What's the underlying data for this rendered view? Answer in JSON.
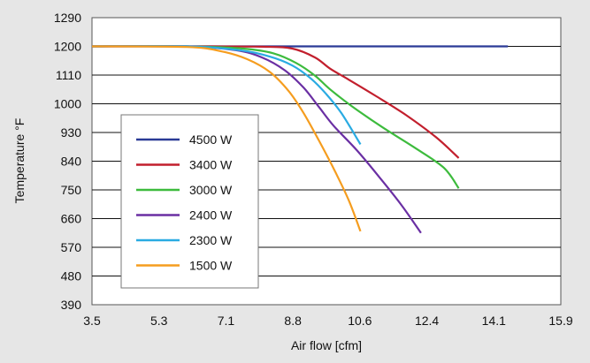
{
  "chart_data": {
    "type": "line",
    "xlabel": "Air flow [cfm]",
    "ylabel": "Temperature °F",
    "xlim": [
      3.5,
      15.9
    ],
    "ylim": [
      390,
      1290
    ],
    "x_ticks": [
      "3.5",
      "5.3",
      "7.1",
      "8.8",
      "10.6",
      "12.4",
      "14.1",
      "15.9"
    ],
    "y_ticks": [
      "1290",
      "1200",
      "1110",
      "1000",
      "930",
      "840",
      "750",
      "660",
      "570",
      "480",
      "390"
    ],
    "grid": "horizontal",
    "legend_position": "center-left",
    "series": [
      {
        "name": "4500 W",
        "color": "#2a3a96",
        "points": [
          [
            3.5,
            1200
          ],
          [
            5.3,
            1200
          ],
          [
            7.1,
            1200
          ],
          [
            8.8,
            1200
          ],
          [
            10.6,
            1200
          ],
          [
            12.4,
            1200
          ],
          [
            14.5,
            1200
          ]
        ]
      },
      {
        "name": "3400 W",
        "color": "#c21f2d",
        "points": [
          [
            3.5,
            1200
          ],
          [
            6.0,
            1200
          ],
          [
            8.0,
            1199
          ],
          [
            8.8,
            1193
          ],
          [
            9.4,
            1165
          ],
          [
            9.8,
            1130
          ],
          [
            10.3,
            1095
          ],
          [
            11.0,
            1045
          ],
          [
            11.8,
            985
          ],
          [
            12.6,
            915
          ],
          [
            13.2,
            850
          ]
        ]
      },
      {
        "name": "3000 W",
        "color": "#3dbb3d",
        "points": [
          [
            3.5,
            1200
          ],
          [
            6.0,
            1200
          ],
          [
            7.5,
            1193
          ],
          [
            8.3,
            1178
          ],
          [
            8.9,
            1148
          ],
          [
            9.4,
            1108
          ],
          [
            9.8,
            1065
          ],
          [
            10.4,
            1010
          ],
          [
            11.2,
            945
          ],
          [
            12.0,
            885
          ],
          [
            12.8,
            820
          ],
          [
            13.2,
            755
          ]
        ]
      },
      {
        "name": "2400 W",
        "color": "#6a2fa3",
        "points": [
          [
            3.5,
            1200
          ],
          [
            6.0,
            1200
          ],
          [
            7.3,
            1188
          ],
          [
            8.0,
            1165
          ],
          [
            8.6,
            1125
          ],
          [
            9.1,
            1070
          ],
          [
            9.5,
            1010
          ],
          [
            9.9,
            950
          ],
          [
            10.5,
            875
          ],
          [
            11.1,
            790
          ],
          [
            11.7,
            700
          ],
          [
            12.2,
            615
          ]
        ]
      },
      {
        "name": "2300 W",
        "color": "#2aabe2",
        "points": [
          [
            3.5,
            1200
          ],
          [
            6.0,
            1200
          ],
          [
            7.4,
            1188
          ],
          [
            8.2,
            1168
          ],
          [
            8.8,
            1140
          ],
          [
            9.3,
            1098
          ],
          [
            9.7,
            1050
          ],
          [
            10.1,
            990
          ],
          [
            10.6,
            893
          ]
        ]
      },
      {
        "name": "1500 W",
        "color": "#f59d1f",
        "points": [
          [
            3.5,
            1200
          ],
          [
            6.0,
            1198
          ],
          [
            6.9,
            1185
          ],
          [
            7.6,
            1160
          ],
          [
            8.2,
            1120
          ],
          [
            8.7,
            1060
          ],
          [
            9.1,
            990
          ],
          [
            9.5,
            905
          ],
          [
            9.9,
            815
          ],
          [
            10.3,
            715
          ],
          [
            10.6,
            620
          ]
        ]
      }
    ]
  }
}
